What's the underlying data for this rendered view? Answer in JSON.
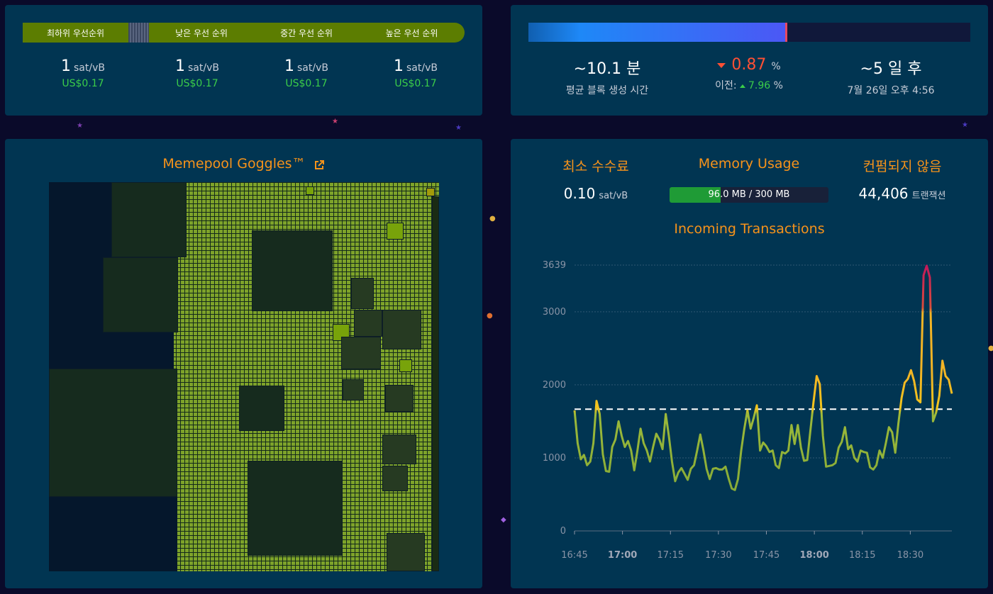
{
  "fees": {
    "tiers": [
      {
        "label": "최하위 우선순위",
        "rate": "1",
        "unit": "sat/vB",
        "usd": "US$0.17"
      },
      {
        "label": "낮은 우선 순위",
        "rate": "1",
        "unit": "sat/vB",
        "usd": "US$0.17"
      },
      {
        "label": "중간 우선 순위",
        "rate": "1",
        "unit": "sat/vB",
        "usd": "US$0.17"
      },
      {
        "label": "높은 우선 순위",
        "rate": "1",
        "unit": "sat/vB",
        "usd": "US$0.17"
      }
    ]
  },
  "difficulty": {
    "progress_fraction": 0.585,
    "avg_block_time": "~10.1 분",
    "avg_block_label": "평균 블록 생성 시간",
    "change_value": "0.87",
    "change_unit": "%",
    "previous_label": "이전:",
    "previous_value": "7.96",
    "previous_unit": "%",
    "eta": "~5 일 후",
    "eta_date": "7월 26일 오후 4:56"
  },
  "goggles": {
    "title": "Memepool Goggles™",
    "link_icon": "external-link-icon"
  },
  "mempool": {
    "min_fee_title": "최소 수수료",
    "min_fee_value": "0.10",
    "min_fee_unit": "sat/vB",
    "memory_title": "Memory Usage",
    "memory_text": "96.0 MB / 300 MB",
    "memory_fraction": 0.32,
    "unconfirmed_title": "컨펌되지 않음",
    "unconfirmed_value": "44,406",
    "unconfirmed_unit": "트랜잭션"
  },
  "incoming": {
    "title": "Incoming Transactions"
  },
  "colors": {
    "accent": "#f7931a",
    "panel": "#013552",
    "green": "#3bcc49",
    "red": "#ff5034"
  },
  "chart_data": {
    "type": "line",
    "title": "Incoming Transactions",
    "ylim": [
      0,
      3639
    ],
    "y_ticks": [
      "0",
      "1000",
      "2000",
      "3000",
      "3639"
    ],
    "x_ticks": [
      {
        "label": "16:45",
        "bold": false
      },
      {
        "label": "17:00",
        "bold": true
      },
      {
        "label": "17:15",
        "bold": false
      },
      {
        "label": "17:30",
        "bold": false
      },
      {
        "label": "17:45",
        "bold": false
      },
      {
        "label": "18:00",
        "bold": true
      },
      {
        "label": "18:15",
        "bold": false
      },
      {
        "label": "18:30",
        "bold": false
      }
    ],
    "x_minutes_start": "16:45",
    "x_minutes_end": "18:43",
    "reference_line": 1667,
    "series": [
      {
        "values": [
          1650,
          1200,
          980,
          1040,
          900,
          950,
          1200,
          1780,
          1600,
          1050,
          820,
          810,
          1150,
          1250,
          1500,
          1300,
          1150,
          1230,
          1100,
          830,
          1100,
          1400,
          1200,
          1100,
          950,
          1150,
          1330,
          1250,
          1120,
          1600,
          1300,
          950,
          680,
          800,
          860,
          780,
          700,
          850,
          900,
          1100,
          1320,
          1100,
          850,
          710,
          850,
          860,
          840,
          840,
          880,
          720,
          580,
          560,
          710,
          1100,
          1400,
          1650,
          1400,
          1550,
          1720,
          1100,
          1210,
          1160,
          1080,
          1100,
          900,
          860,
          1080,
          1060,
          1100,
          1450,
          1190,
          1450,
          1140,
          960,
          970,
          1370,
          1760,
          2120,
          2010,
          1300,
          880,
          890,
          900,
          930,
          1140,
          1220,
          1420,
          1120,
          1170,
          1000,
          950,
          1100,
          1080,
          1070,
          870,
          840,
          900,
          1100,
          1000,
          1200,
          1420,
          1350,
          1070,
          1470,
          1820,
          2030,
          2080,
          2200,
          2050,
          1800,
          1760,
          3500,
          3630,
          3470,
          1500,
          1620,
          1850,
          2330,
          2120,
          2070,
          1880
        ]
      }
    ]
  }
}
